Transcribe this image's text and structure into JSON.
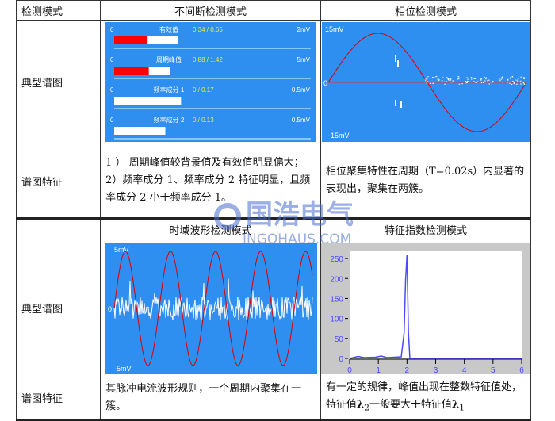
{
  "header1": {
    "col1": "检测模式",
    "col2": "不间断检测模式",
    "col3": "相位检测模式"
  },
  "row_typical": "典型谱图",
  "row_feature": "谱图特征",
  "continuous": {
    "bars": [
      {
        "label": "有效值",
        "value": "0.34 / 0.65",
        "min": "0",
        "max": "2mV",
        "current": 0.34,
        "peak": 0.65,
        "scale": 2
      },
      {
        "label": "周期峰值",
        "value": "0.88 / 1.42",
        "min": "0",
        "max": "5mV",
        "current": 0.88,
        "peak": 1.42,
        "scale": 5
      },
      {
        "label": "频率成分 1",
        "value": "0 / 0.17",
        "min": "0",
        "max": "0.5mV",
        "current": 0,
        "peak": 0.17,
        "scale": 0.5
      },
      {
        "label": "频率成分 2",
        "value": "0 / 0.13",
        "min": "0",
        "max": "0.5mV",
        "current": 0,
        "peak": 0.13,
        "scale": 0.5
      }
    ],
    "colors": {
      "bg": "#2f8ff0",
      "fill": "#ff0000",
      "value_text": "#e8f040"
    }
  },
  "phase": {
    "ymax": "15mV",
    "zero": "0",
    "ymin": "-15mV"
  },
  "feature1": {
    "line1": "1 ） 周期峰值较背景值及有效值明显偏大；",
    "line2": "2）频率成分 1、频率成分 2 特征明显，且频率成分 2 小于频率成分 1。"
  },
  "feature2": "相位聚集特性在周期（T=0.02s）内显著的表现出，聚集在两簇。",
  "header2": {
    "col2": "时域波形检测模式",
    "col3": "特征指数检测模式"
  },
  "timedomain": {
    "ymax": "5mV",
    "zero": "0",
    "ymin": "-5mV"
  },
  "chart_data": {
    "type": "line",
    "x": [
      0,
      0.3,
      0.5,
      0.9,
      1.1,
      1.3,
      1.8,
      1.9,
      1.95,
      2.0,
      2.05,
      2.1,
      3,
      4,
      5,
      6
    ],
    "values": [
      0,
      5,
      2,
      3,
      6,
      2,
      4,
      65,
      195,
      260,
      65,
      0,
      0,
      0,
      0,
      0
    ],
    "xlim": [
      0,
      6
    ],
    "ylim": [
      0,
      270
    ],
    "xticks": [
      "0",
      "1",
      "2",
      "3",
      "4",
      "5",
      "6"
    ],
    "yticks": [
      "0",
      "50",
      "100",
      "150",
      "200",
      "250"
    ],
    "color": "#4a4aff"
  },
  "feature3": "其脉冲电流波形规则，一个周期内聚集在一簇。",
  "feature4": {
    "text1": "有一定的规律，峰值出现在整数特征值处，特征值",
    "l2": "λ",
    "sub2": "2",
    "text2": "一般要大于特征值",
    "l1": "λ",
    "sub1": "1"
  },
  "watermark": {
    "cn": "国浩电气",
    "en": "INGOHAUS.COM"
  }
}
